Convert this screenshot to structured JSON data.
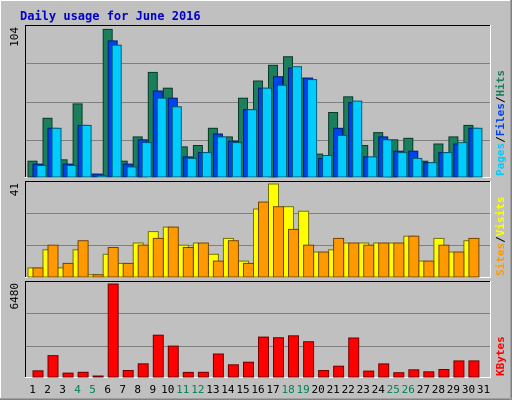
{
  "chart_data": [
    {
      "type": "bar",
      "panel": "hits-files-pages",
      "title": "Daily usage for June 2016",
      "ylim": [
        0,
        104
      ],
      "ymax_label": "104",
      "categories": [
        "1",
        "2",
        "3",
        "4",
        "5",
        "6",
        "7",
        "8",
        "9",
        "10",
        "11",
        "12",
        "13",
        "14",
        "15",
        "16",
        "17",
        "18",
        "19",
        "20",
        "21",
        "22",
        "23",
        "24",
        "25",
        "26",
        "27",
        "28",
        "29",
        "30",
        "31"
      ],
      "weekend_days": [
        "4",
        "5",
        "11",
        "12",
        "18",
        "19",
        "25",
        "26"
      ],
      "series": [
        {
          "name": "Hits",
          "color": "#1a7f5a",
          "values": [
            11,
            41,
            12,
            51,
            2,
            103,
            11,
            28,
            73,
            62,
            21,
            22,
            34,
            28,
            55,
            67,
            78,
            84,
            69,
            16,
            45,
            56,
            22,
            31,
            26,
            27,
            11,
            23,
            28,
            36,
            0
          ]
        },
        {
          "name": "Files",
          "color": "#0044ee",
          "values": [
            9,
            34,
            9,
            36,
            2,
            95,
            9,
            26,
            60,
            55,
            14,
            17,
            30,
            25,
            47,
            62,
            70,
            76,
            69,
            13,
            34,
            52,
            14,
            28,
            18,
            18,
            10,
            17,
            23,
            34,
            0
          ]
        },
        {
          "name": "Pages",
          "color": "#00ccff",
          "values": [
            8,
            34,
            8,
            36,
            1,
            92,
            7,
            24,
            55,
            49,
            13,
            17,
            28,
            24,
            47,
            62,
            64,
            77,
            68,
            15,
            29,
            53,
            14,
            26,
            17,
            13,
            10,
            17,
            24,
            34,
            0
          ]
        }
      ],
      "legend": [
        {
          "text": "Pages",
          "color": "#00ccff"
        },
        {
          "text": "/",
          "color": "#000000"
        },
        {
          "text": "Files",
          "color": "#0044ee"
        },
        {
          "text": "/",
          "color": "#000000"
        },
        {
          "text": "Hits",
          "color": "#1a7f5a"
        }
      ]
    },
    {
      "type": "bar",
      "panel": "visits-sites",
      "ylim": [
        0,
        41
      ],
      "ymax_label": "41",
      "series": [
        {
          "name": "Visits",
          "color": "#ffff00",
          "values": [
            4,
            12,
            4,
            12,
            1,
            10,
            6,
            15,
            20,
            22,
            14,
            15,
            10,
            17,
            7,
            30,
            41,
            31,
            29,
            11,
            12,
            15,
            15,
            15,
            15,
            18,
            7,
            17,
            11,
            16,
            0
          ]
        },
        {
          "name": "Sites",
          "color": "#ff9900",
          "values": [
            4,
            14,
            6,
            16,
            1,
            13,
            6,
            14,
            17,
            22,
            13,
            15,
            7,
            16,
            6,
            33,
            31,
            21,
            14,
            11,
            17,
            15,
            14,
            15,
            15,
            18,
            7,
            14,
            11,
            17,
            0
          ]
        }
      ],
      "legend": [
        {
          "text": "Sites",
          "color": "#ff9900"
        },
        {
          "text": "/",
          "color": "#000000"
        },
        {
          "text": "Visits",
          "color": "#ffff00"
        }
      ]
    },
    {
      "type": "bar",
      "panel": "kbytes",
      "ylim": [
        0,
        6480
      ],
      "ymax_label": "6480",
      "series": [
        {
          "name": "KBytes",
          "color": "#ff0000",
          "values": [
            430,
            1490,
            270,
            330,
            60,
            6480,
            450,
            920,
            2910,
            2150,
            320,
            330,
            1600,
            850,
            1030,
            2780,
            2740,
            2870,
            2460,
            450,
            750,
            2720,
            410,
            910,
            300,
            500,
            360,
            520,
            1120,
            1120,
            0
          ]
        }
      ],
      "legend": [
        {
          "text": "KBytes",
          "color": "#ff0000"
        }
      ]
    }
  ]
}
